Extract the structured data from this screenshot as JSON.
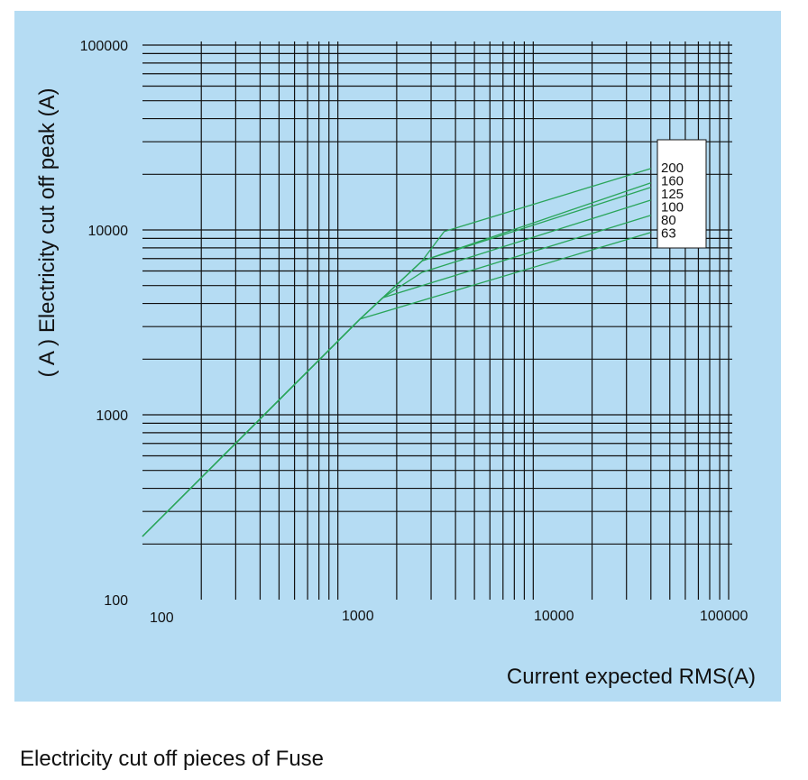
{
  "chart_data": {
    "type": "line",
    "title": "",
    "caption": "Electricity cut off pieces of Fuse",
    "xlabel": "Current expected RMS(A)",
    "ylabel": "( A ) Electricity cut off peak (A)",
    "x_scale": "log",
    "y_scale": "log",
    "xlim": [
      100,
      100000
    ],
    "ylim": [
      100,
      100000
    ],
    "x_ticks": [
      "100",
      "1000",
      "10000",
      "100000"
    ],
    "y_ticks": [
      "100",
      "1000",
      "10000",
      "100000"
    ],
    "grid": true,
    "legend_position": "right",
    "line_color": "#2aa55a",
    "grid_color": "#111111",
    "background_color": "#b5dcf3",
    "series": [
      {
        "name": "63",
        "x": [
          100,
          1300,
          40000
        ],
        "y": [
          220,
          3300,
          9700
        ]
      },
      {
        "name": "80",
        "x": [
          100,
          1300,
          1700,
          40000
        ],
        "y": [
          220,
          3300,
          4300,
          12000
        ]
      },
      {
        "name": "100",
        "x": [
          100,
          1300,
          1700,
          2700,
          40000
        ],
        "y": [
          220,
          3300,
          4300,
          5900,
          14500
        ]
      },
      {
        "name": "125",
        "x": [
          100,
          1300,
          1700,
          2700,
          40000
        ],
        "y": [
          220,
          3300,
          4300,
          6800,
          17000
        ]
      },
      {
        "name": "160",
        "x": [
          100,
          1300,
          1700,
          2700,
          40000
        ],
        "y": [
          220,
          3300,
          4300,
          6800,
          18000
        ]
      },
      {
        "name": "200",
        "x": [
          100,
          1300,
          1700,
          2700,
          3500,
          40000
        ],
        "y": [
          220,
          3300,
          4300,
          6800,
          9800,
          21500
        ]
      }
    ]
  }
}
